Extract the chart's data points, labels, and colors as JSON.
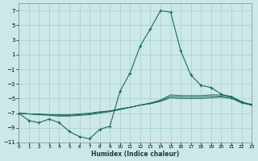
{
  "xlabel": "Humidex (Indice chaleur)",
  "bg_color": "#cce8e8",
  "grid_color": "#aacece",
  "line_color": "#1a6b5a",
  "xlim": [
    0,
    23
  ],
  "ylim": [
    -11,
    8
  ],
  "yticks": [
    -11,
    -9,
    -7,
    -5,
    -3,
    -1,
    1,
    3,
    5,
    7
  ],
  "xticks": [
    0,
    1,
    2,
    3,
    4,
    5,
    6,
    7,
    8,
    9,
    10,
    11,
    12,
    13,
    14,
    15,
    16,
    17,
    18,
    19,
    20,
    21,
    22,
    23
  ],
  "main_x": [
    0,
    1,
    2,
    3,
    4,
    5,
    6,
    7,
    8,
    9,
    10,
    11,
    12,
    13,
    14,
    15,
    16,
    17,
    18,
    19,
    20,
    21,
    22,
    23
  ],
  "main_y": [
    -7.0,
    -8.0,
    -8.3,
    -7.8,
    -8.3,
    -9.5,
    -10.2,
    -10.5,
    -9.2,
    -8.8,
    -4.0,
    -1.5,
    2.2,
    4.5,
    7.0,
    6.8,
    1.5,
    -1.8,
    -3.2,
    -3.5,
    -4.4,
    -4.8,
    -5.5,
    -5.8
  ],
  "line1_x": [
    0,
    1,
    2,
    3,
    4,
    5,
    6,
    7,
    8,
    9,
    10,
    11,
    12,
    13,
    14,
    15,
    16,
    17,
    18,
    19,
    20,
    21,
    22,
    23
  ],
  "line1_y": [
    -7.0,
    -7.1,
    -7.1,
    -7.2,
    -7.2,
    -7.2,
    -7.1,
    -7.0,
    -6.8,
    -6.7,
    -6.4,
    -6.2,
    -5.9,
    -5.7,
    -5.4,
    -4.9,
    -5.0,
    -5.0,
    -5.0,
    -4.9,
    -4.8,
    -5.0,
    -5.6,
    -5.9
  ],
  "line2_x": [
    0,
    1,
    2,
    3,
    4,
    5,
    6,
    7,
    8,
    9,
    10,
    11,
    12,
    13,
    14,
    15,
    16,
    17,
    18,
    19,
    20,
    21,
    22,
    23
  ],
  "line2_y": [
    -7.0,
    -7.1,
    -7.2,
    -7.2,
    -7.3,
    -7.3,
    -7.2,
    -7.1,
    -6.9,
    -6.7,
    -6.5,
    -6.2,
    -5.9,
    -5.7,
    -5.3,
    -4.7,
    -4.8,
    -4.8,
    -4.8,
    -4.7,
    -4.7,
    -4.8,
    -5.5,
    -5.9
  ],
  "line3_x": [
    0,
    1,
    2,
    3,
    4,
    5,
    6,
    7,
    8,
    9,
    10,
    11,
    12,
    13,
    14,
    15,
    16,
    17,
    18,
    19,
    20,
    21,
    22,
    23
  ],
  "line3_y": [
    -7.0,
    -7.1,
    -7.2,
    -7.3,
    -7.4,
    -7.4,
    -7.3,
    -7.2,
    -7.0,
    -6.8,
    -6.5,
    -6.2,
    -5.9,
    -5.6,
    -5.2,
    -4.5,
    -4.6,
    -4.6,
    -4.6,
    -4.5,
    -4.5,
    -4.7,
    -5.4,
    -5.9
  ]
}
